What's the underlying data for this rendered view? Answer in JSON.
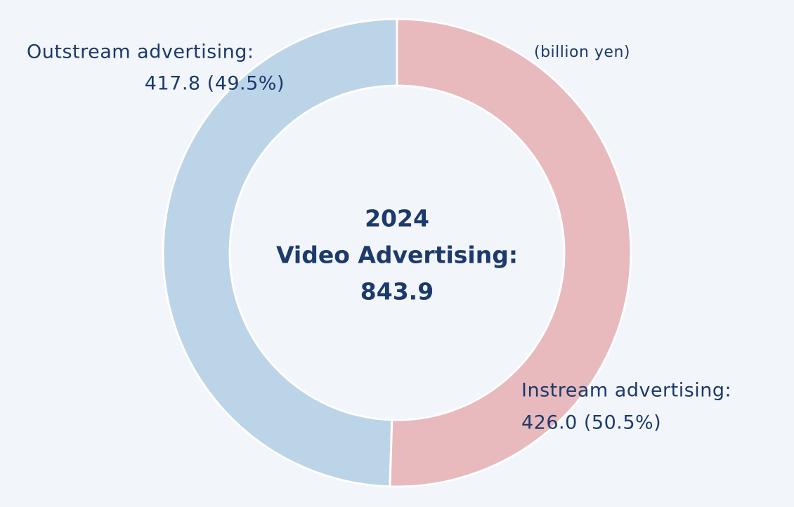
{
  "chart_data": {
    "type": "pie",
    "unit": "(billion yen)",
    "center_text": [
      "2024",
      "Video Advertising:",
      "843.9"
    ],
    "categories": [
      "Instream advertising:",
      "Outstream advertising:"
    ],
    "values": [
      426.0,
      417.8
    ],
    "value_labels": [
      "426.0 (50.5%)",
      "417.8 (49.5%)"
    ],
    "colors": [
      "#e8babd",
      "#bcd4e8"
    ],
    "donut": true
  }
}
